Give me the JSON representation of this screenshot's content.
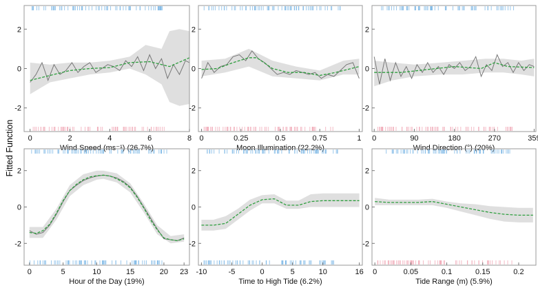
{
  "figure": {
    "ylabel": "Fitted Function"
  },
  "chart_data": [
    {
      "type": "line",
      "xlabel": "Wind Speed (ms⁻¹) (26.7%)",
      "ylabel": "Fitted Function",
      "xlim": [
        -0.3,
        8
      ],
      "ylim": [
        -3.2,
        3.2
      ],
      "xticks": [
        0,
        2,
        4,
        6,
        8
      ],
      "xtick_labels": [
        "0",
        "2",
        "4",
        "6",
        "8"
      ],
      "yticks": [
        -2,
        0,
        2
      ],
      "ytick_labels": [
        "-2",
        "0",
        "2"
      ],
      "rug": {
        "top": "blue",
        "bottom": "pink"
      },
      "series": [
        {
          "style": "observed",
          "x": [
            0,
            0.3,
            0.6,
            0.9,
            1.2,
            1.5,
            1.8,
            2.1,
            2.4,
            2.7,
            3.0,
            3.3,
            3.6,
            3.9,
            4.2,
            4.5,
            4.8,
            5.1,
            5.4,
            5.7,
            6.0,
            6.3,
            6.6,
            6.9,
            7.2,
            7.5,
            7.8,
            8.0
          ],
          "y": [
            -0.7,
            -0.3,
            0.3,
            -0.6,
            0.2,
            -0.3,
            -0.1,
            0.3,
            -0.2,
            0.1,
            0.3,
            -0.2,
            0.0,
            0.2,
            0.1,
            -0.1,
            0.4,
            0.1,
            0.6,
            -0.1,
            0.7,
            0.0,
            0.5,
            -0.5,
            0.2,
            -0.3,
            0.4,
            0.3
          ]
        },
        {
          "style": "smooth",
          "x": [
            0,
            1,
            2,
            3,
            4,
            5,
            6,
            7,
            8
          ],
          "y": [
            -0.6,
            -0.35,
            -0.1,
            0.0,
            0.05,
            0.3,
            0.35,
            0.1,
            0.55
          ]
        }
      ],
      "band": {
        "x": [
          0,
          1,
          2,
          3,
          4,
          5,
          5.8,
          6.6,
          7.0,
          7.5,
          8.0
        ],
        "lower": [
          -1.3,
          -0.7,
          -0.5,
          -0.3,
          -0.2,
          0.0,
          -0.3,
          -0.8,
          -1.7,
          -1.9,
          -1.8
        ],
        "upper": [
          0.3,
          0.2,
          0.3,
          0.3,
          0.4,
          0.6,
          1.2,
          1.0,
          1.9,
          2.0,
          1.9
        ]
      }
    },
    {
      "type": "line",
      "xlabel": "Moon Illumination (22.2%)",
      "ylabel": "Fitted Function",
      "xlim": [
        -0.02,
        1.02
      ],
      "ylim": [
        -3.2,
        3.2
      ],
      "xticks": [
        0,
        0.25,
        0.5,
        0.75,
        1
      ],
      "xtick_labels": [
        "0",
        "0.25",
        "0.5",
        "0.75",
        "1"
      ],
      "yticks": [
        -2,
        0,
        2
      ],
      "ytick_labels": [
        "-2",
        "0",
        "2"
      ],
      "rug": {
        "top": "blue",
        "bottom": "pink"
      },
      "series": [
        {
          "style": "observed",
          "x": [
            0,
            0.04,
            0.08,
            0.12,
            0.16,
            0.2,
            0.24,
            0.28,
            0.32,
            0.36,
            0.4,
            0.44,
            0.48,
            0.52,
            0.56,
            0.6,
            0.64,
            0.68,
            0.72,
            0.76,
            0.8,
            0.84,
            0.88,
            0.92,
            0.96,
            1.0
          ],
          "y": [
            -0.5,
            0.3,
            -0.2,
            0.1,
            0.2,
            0.6,
            0.7,
            0.4,
            0.9,
            0.5,
            0.3,
            0.0,
            -0.3,
            -0.2,
            -0.3,
            -0.1,
            -0.2,
            -0.3,
            -0.2,
            -0.5,
            -0.3,
            -0.4,
            -0.1,
            0.2,
            0.3,
            -0.5
          ]
        },
        {
          "style": "smooth",
          "x": [
            0,
            0.1,
            0.2,
            0.3,
            0.35,
            0.45,
            0.55,
            0.65,
            0.75,
            0.85,
            1.0
          ],
          "y": [
            -0.05,
            0.0,
            0.3,
            0.55,
            0.55,
            0.0,
            -0.2,
            -0.2,
            -0.35,
            -0.2,
            0.1
          ]
        }
      ],
      "band": {
        "x": [
          0,
          0.15,
          0.3,
          0.45,
          0.6,
          0.75,
          0.9,
          1.0
        ],
        "lower": [
          -0.4,
          -0.2,
          0.1,
          -0.4,
          -0.5,
          -0.6,
          -0.3,
          -0.3
        ],
        "upper": [
          0.4,
          0.5,
          1.0,
          0.4,
          0.1,
          -0.1,
          0.4,
          0.5
        ]
      }
    },
    {
      "type": "line",
      "xlabel": "Wind Direction (°) (20%)",
      "ylabel": "Fitted Function",
      "xlim": [
        -5,
        363
      ],
      "ylim": [
        -3.2,
        3.2
      ],
      "xticks": [
        0,
        90,
        180,
        270,
        359
      ],
      "xtick_labels": [
        "0",
        "90",
        "180",
        "270",
        "359"
      ],
      "yticks": [
        -2,
        0,
        2
      ],
      "ytick_labels": [
        "-2",
        "0",
        "2"
      ],
      "rug": {
        "top": "blue",
        "bottom": "pink"
      },
      "series": [
        {
          "style": "observed",
          "x": [
            0,
            12,
            24,
            36,
            48,
            60,
            72,
            84,
            96,
            108,
            120,
            132,
            144,
            156,
            168,
            180,
            192,
            204,
            216,
            228,
            240,
            252,
            264,
            276,
            288,
            300,
            312,
            324,
            336,
            348,
            359
          ],
          "y": [
            0.6,
            -0.8,
            0.5,
            -0.6,
            0.3,
            -0.4,
            0.1,
            -0.5,
            0.2,
            -0.2,
            0.3,
            -0.2,
            0.1,
            -0.3,
            0.2,
            0.0,
            0.3,
            -0.1,
            0.1,
            0.6,
            -0.4,
            0.2,
            -0.1,
            0.7,
            0.1,
            0.3,
            -0.2,
            0.3,
            -0.1,
            0.2,
            0.1
          ]
        },
        {
          "style": "smooth",
          "x": [
            0,
            60,
            120,
            180,
            240,
            270,
            300,
            359
          ],
          "y": [
            -0.2,
            -0.2,
            -0.05,
            0.1,
            0.0,
            0.3,
            0.1,
            0.05
          ]
        }
      ],
      "band": {
        "x": [
          0,
          40,
          90,
          150,
          200,
          250,
          290,
          330,
          359
        ],
        "lower": [
          -0.9,
          -0.6,
          -0.4,
          -0.3,
          -0.3,
          -0.2,
          -0.2,
          -0.3,
          -0.4
        ],
        "upper": [
          0.4,
          0.3,
          0.2,
          0.3,
          0.4,
          0.5,
          0.5,
          0.4,
          0.5
        ]
      }
    },
    {
      "type": "line",
      "xlabel": "Hour of the Day (19%)",
      "ylabel": "Fitted Function",
      "xlim": [
        -0.8,
        23.8
      ],
      "ylim": [
        -3.2,
        3.2
      ],
      "xticks": [
        0,
        5,
        10,
        15,
        20,
        23
      ],
      "xtick_labels": [
        "0",
        "5",
        "10",
        "15",
        "20",
        "23"
      ],
      "yticks": [
        -2,
        0,
        2
      ],
      "ytick_labels": [
        "-2",
        "0",
        "2"
      ],
      "rug": {
        "top": "blue",
        "bottom": "blue"
      },
      "series": [
        {
          "style": "observed",
          "x": [
            0,
            1,
            2,
            3,
            4,
            5,
            6,
            7,
            8,
            9,
            10,
            11,
            12,
            13,
            14,
            15,
            16,
            17,
            18,
            19,
            20,
            21,
            22,
            23
          ],
          "y": [
            -1.3,
            -1.5,
            -1.4,
            -1.0,
            -0.4,
            0.3,
            0.9,
            1.2,
            1.45,
            1.6,
            1.7,
            1.75,
            1.7,
            1.6,
            1.4,
            1.1,
            0.6,
            0.0,
            -0.6,
            -1.2,
            -1.75,
            -1.8,
            -1.85,
            -1.7
          ]
        },
        {
          "style": "smooth",
          "x": [
            0,
            1,
            2,
            3,
            4,
            5,
            6,
            7,
            8,
            9,
            10,
            11,
            12,
            13,
            14,
            15,
            16,
            17,
            18,
            19,
            20,
            21,
            22,
            23
          ],
          "y": [
            -1.4,
            -1.45,
            -1.3,
            -0.95,
            -0.35,
            0.35,
            0.9,
            1.25,
            1.5,
            1.65,
            1.72,
            1.75,
            1.7,
            1.55,
            1.35,
            1.05,
            0.55,
            -0.05,
            -0.7,
            -1.25,
            -1.7,
            -1.8,
            -1.85,
            -1.75
          ]
        }
      ],
      "band": {
        "x": [
          0,
          2,
          4,
          6,
          8,
          10,
          11,
          13,
          15,
          17,
          19,
          21,
          23
        ],
        "lower": [
          -1.7,
          -1.7,
          -0.7,
          0.6,
          1.2,
          1.5,
          1.55,
          1.35,
          0.8,
          -0.3,
          -1.5,
          -2.0,
          -1.9
        ],
        "upper": [
          -1.1,
          -1.1,
          -0.1,
          1.2,
          1.8,
          2.0,
          2.0,
          1.85,
          1.3,
          0.2,
          -1.0,
          -1.6,
          -1.5
        ]
      }
    },
    {
      "type": "line",
      "xlabel": "Time to High Tide (6.2%)",
      "ylabel": "Fitted Function",
      "xlim": [
        -10.5,
        16.5
      ],
      "ylim": [
        -3.2,
        3.2
      ],
      "xticks": [
        -10,
        -5,
        0,
        5,
        10,
        16
      ],
      "xtick_labels": [
        "-10",
        "-5",
        "0",
        "5",
        "10",
        "16"
      ],
      "yticks": [
        -2,
        0,
        2
      ],
      "ytick_labels": [
        "-2",
        "0",
        "2"
      ],
      "rug": {
        "top": "blue",
        "bottom": "blue"
      },
      "series": [
        {
          "style": "smooth",
          "x": [
            -10,
            -8,
            -6,
            -4,
            -2,
            0,
            2,
            4,
            6,
            8,
            10,
            12,
            14,
            16
          ],
          "y": [
            -1.0,
            -1.0,
            -0.9,
            -0.4,
            0.1,
            0.4,
            0.45,
            0.1,
            0.1,
            0.3,
            0.35,
            0.35,
            0.35,
            0.35
          ]
        }
      ],
      "band": {
        "x": [
          -10,
          -8,
          -6,
          -4,
          -2,
          0,
          2,
          4,
          6,
          8,
          10,
          12,
          14,
          16
        ],
        "lower": [
          -1.3,
          -1.3,
          -1.2,
          -0.7,
          -0.2,
          0.2,
          0.2,
          -0.1,
          -0.1,
          0.0,
          0.0,
          0.0,
          0.0,
          0.0
        ],
        "upper": [
          -0.7,
          -0.7,
          -0.5,
          -0.1,
          0.4,
          0.65,
          0.7,
          0.35,
          0.35,
          0.7,
          0.75,
          0.75,
          0.75,
          0.75
        ]
      }
    },
    {
      "type": "line",
      "xlabel": "Tide Range (m) (5.9%)",
      "ylabel": "Fitted Function",
      "xlim": [
        -0.004,
        0.224
      ],
      "ylim": [
        -3.2,
        3.2
      ],
      "xticks": [
        0,
        0.05,
        0.1,
        0.15,
        0.2
      ],
      "xtick_labels": [
        "0",
        "0.05",
        "0.1",
        "0.15",
        "0.2"
      ],
      "yticks": [
        -2,
        0,
        2
      ],
      "ytick_labels": [
        "-2",
        "0",
        "2"
      ],
      "rug": {
        "top": "blue",
        "bottom": "pink"
      },
      "series": [
        {
          "style": "smooth",
          "x": [
            0,
            0.02,
            0.04,
            0.06,
            0.08,
            0.1,
            0.12,
            0.14,
            0.16,
            0.18,
            0.2,
            0.22
          ],
          "y": [
            0.3,
            0.25,
            0.25,
            0.25,
            0.3,
            0.15,
            0.0,
            -0.15,
            -0.3,
            -0.4,
            -0.45,
            -0.45
          ]
        }
      ],
      "band": {
        "x": [
          0,
          0.02,
          0.04,
          0.06,
          0.08,
          0.1,
          0.12,
          0.14,
          0.16,
          0.18,
          0.2,
          0.22
        ],
        "lower": [
          0.1,
          0.1,
          0.1,
          0.1,
          0.1,
          -0.05,
          -0.25,
          -0.45,
          -0.65,
          -0.8,
          -0.85,
          -0.85
        ],
        "upper": [
          0.5,
          0.4,
          0.4,
          0.4,
          0.45,
          0.3,
          0.2,
          0.15,
          0.05,
          0.0,
          -0.05,
          -0.05
        ]
      }
    }
  ]
}
